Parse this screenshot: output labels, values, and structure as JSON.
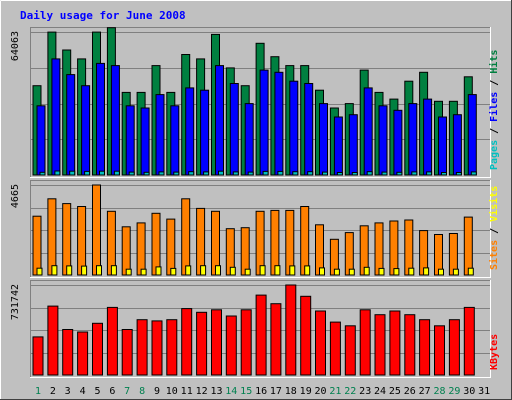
{
  "chart_data": {
    "type": "bar",
    "title": "Daily usage for June 2008",
    "categories": [
      "1",
      "2",
      "3",
      "4",
      "5",
      "6",
      "7",
      "8",
      "9",
      "10",
      "11",
      "12",
      "13",
      "14",
      "15",
      "16",
      "17",
      "18",
      "19",
      "20",
      "21",
      "22",
      "23",
      "24",
      "25",
      "26",
      "27",
      "28",
      "29",
      "30",
      "31"
    ],
    "weekend_categories": [
      "1",
      "7",
      "8",
      "14",
      "15",
      "21",
      "22",
      "28",
      "29"
    ],
    "panels": [
      {
        "name": "hits-panel",
        "ymax_label": "64063",
        "ymax": 64063,
        "side_labels": [
          "Pages",
          "Files",
          "Hits"
        ],
        "series": [
          {
            "name": "Hits",
            "color": "#008040",
            "values": [
              40000,
              64000,
              56000,
              52000,
              64000,
              66000,
              37000,
              37000,
              49000,
              37000,
              54000,
              52000,
              63000,
              48000,
              40000,
              59000,
              53000,
              49000,
              49000,
              38000,
              30000,
              32000,
              47000,
              37000,
              34000,
              42000,
              46000,
              33000,
              33000,
              44000,
              0
            ]
          },
          {
            "name": "Files",
            "color": "#0000ff",
            "values": [
              31000,
              52000,
              45000,
              40000,
              50000,
              49000,
              31000,
              30000,
              36000,
              31000,
              39000,
              38000,
              49000,
              41000,
              32000,
              47000,
              46000,
              42000,
              41000,
              32000,
              26000,
              27000,
              39000,
              31000,
              29000,
              32000,
              34000,
              26000,
              27000,
              36000,
              0
            ]
          },
          {
            "name": "Pages",
            "color": "#00c0c0",
            "values": [
              1200,
              1800,
              1700,
              1600,
              1700,
              1700,
              1300,
              1200,
              1400,
              1300,
              1500,
              1400,
              1700,
              1400,
              1300,
              1600,
              1600,
              1500,
              1500,
              1300,
              1100,
              1100,
              1500,
              1300,
              1200,
              1400,
              1400,
              1100,
              1100,
              1400,
              0
            ]
          }
        ],
        "side_label_colors": [
          "#00c0c0",
          "#0000ff",
          "#008040"
        ]
      },
      {
        "name": "visits-panel",
        "ymax_label": "4665",
        "ymax": 4665,
        "side_labels": [
          "Sites",
          "Visits"
        ],
        "series": [
          {
            "name": "Visits",
            "color": "#ff8000",
            "values": [
              3050,
              3950,
              3700,
              3550,
              4665,
              3300,
              2500,
              2700,
              3200,
              2900,
              3950,
              3450,
              3300,
              2400,
              2450,
              3300,
              3350,
              3350,
              3550,
              2600,
              1850,
              2200,
              2550,
              2700,
              2800,
              2850,
              2300,
              2100,
              2150,
              3000,
              0
            ]
          },
          {
            "name": "Sites",
            "color": "#ffff00",
            "values": [
              350,
              480,
              470,
              460,
              480,
              480,
              300,
              300,
              420,
              340,
              470,
              480,
              480,
              400,
              300,
              480,
              480,
              470,
              470,
              370,
              300,
              300,
              400,
              340,
              330,
              350,
              370,
              300,
              300,
              350,
              0
            ]
          }
        ],
        "side_label_colors": [
          "#ff8000",
          "#ffff00"
        ]
      },
      {
        "name": "kbytes-panel",
        "ymax_label": "731742",
        "ymax": 731742,
        "side_labels": [
          "KBytes"
        ],
        "series": [
          {
            "name": "KBytes",
            "color": "#ff0000",
            "values": [
              310000,
              560000,
              370000,
              350000,
              420000,
              550000,
              370000,
              450000,
              440000,
              450000,
              540000,
              510000,
              530000,
              480000,
              530000,
              650000,
              580000,
              731742,
              640000,
              520000,
              430000,
              400000,
              530000,
              490000,
              520000,
              490000,
              450000,
              400000,
              450000,
              550000,
              0
            ]
          }
        ],
        "side_label_colors": [
          "#ff0000"
        ]
      }
    ]
  },
  "colors": {
    "background": "#c0c0c0",
    "title": "#0000ff",
    "weekday_label": "#000000",
    "weekend_label": "#00804f",
    "bar_outline": "#000000"
  }
}
